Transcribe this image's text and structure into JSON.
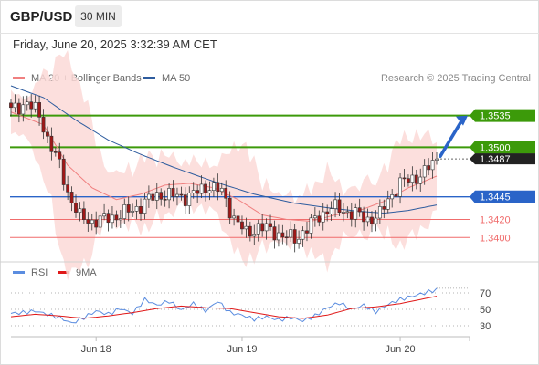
{
  "header": {
    "symbol": "GBP/USD",
    "timeframe": "30 MIN",
    "datetime": "Friday, June 20, 2025 3:32:39 AM CET"
  },
  "legend": {
    "ma20": "MA 20 + Bollinger Bands",
    "ma50": "MA 50",
    "rsi": "RSI",
    "rsi_ma": "9MA",
    "credit": "Research © 2025 Trading Central"
  },
  "colors": {
    "ma20": "#f08080",
    "bollinger_fill": "#fcd9d7",
    "ma50": "#2e5c9e",
    "resistance": "#3c9a0a",
    "pivot": "#2a64c8",
    "support": "#f06c6c",
    "candle_up": "#ffffff",
    "candle_down": "#a01818",
    "rsi": "#5b8de0",
    "rsi_ma": "#e01818",
    "arrow": "#2a64c8",
    "current_price_bg": "#222222"
  },
  "chart_data": [
    {
      "type": "candlestick",
      "ylim": [
        1.3375,
        1.3565
      ],
      "x_tick_labels": [
        "Jun 18",
        "Jun 19",
        "Jun 20"
      ],
      "current_price": "1.3487",
      "levels": [
        {
          "value": 1.3535,
          "label": "1.3535",
          "kind": "resistance"
        },
        {
          "value": 1.35,
          "label": "1.3500",
          "kind": "resistance"
        },
        {
          "value": 1.3445,
          "label": "1.3445",
          "kind": "pivot"
        },
        {
          "value": 1.342,
          "label": "1.3420",
          "kind": "support"
        },
        {
          "value": 1.34,
          "label": "1.3400",
          "kind": "support"
        }
      ],
      "projection": {
        "from": 1.349,
        "to": 1.3535
      },
      "series": [
        {
          "name": "MA 20 + Bollinger Bands",
          "anchors": [
            [
              0,
              1.3539
            ],
            [
              8,
              1.3525
            ],
            [
              14,
              1.348
            ],
            [
              20,
              1.3455
            ],
            [
              26,
              1.3442
            ],
            [
              32,
              1.3448
            ],
            [
              38,
              1.3458
            ],
            [
              44,
              1.346
            ],
            [
              50,
              1.3455
            ],
            [
              56,
              1.3442
            ],
            [
              62,
              1.3425
            ],
            [
              68,
              1.342
            ],
            [
              74,
              1.3418
            ],
            [
              80,
              1.3425
            ],
            [
              86,
              1.343
            ],
            [
              92,
              1.344
            ],
            [
              98,
              1.3455
            ],
            [
              105,
              1.3468
            ]
          ]
        },
        {
          "name": "MA 50",
          "anchors": [
            [
              0,
              1.3568
            ],
            [
              8,
              1.3555
            ],
            [
              16,
              1.353
            ],
            [
              24,
              1.3508
            ],
            [
              32,
              1.3492
            ],
            [
              40,
              1.3478
            ],
            [
              50,
              1.3462
            ],
            [
              60,
              1.3448
            ],
            [
              70,
              1.3438
            ],
            [
              78,
              1.3433
            ],
            [
              86,
              1.3429
            ],
            [
              92,
              1.3427
            ],
            [
              98,
              1.343
            ],
            [
              105,
              1.3436
            ]
          ]
        }
      ]
    },
    {
      "type": "line",
      "title": "RSI",
      "ylim": [
        20,
        80
      ],
      "y_ticks": [
        70,
        50,
        30
      ],
      "series": [
        {
          "name": "RSI",
          "anchors": [
            [
              0,
              45
            ],
            [
              3,
              46
            ],
            [
              6,
              48
            ],
            [
              9,
              44
            ],
            [
              12,
              40
            ],
            [
              15,
              33
            ],
            [
              18,
              40
            ],
            [
              21,
              48
            ],
            [
              24,
              44
            ],
            [
              27,
              51
            ],
            [
              30,
              45
            ],
            [
              33,
              62
            ],
            [
              36,
              55
            ],
            [
              39,
              60
            ],
            [
              42,
              49
            ],
            [
              45,
              57
            ],
            [
              48,
              48
            ],
            [
              51,
              60
            ],
            [
              54,
              46
            ],
            [
              57,
              43
            ],
            [
              60,
              38
            ],
            [
              63,
              41
            ],
            [
              66,
              37
            ],
            [
              69,
              40
            ],
            [
              72,
              36
            ],
            [
              75,
              42
            ],
            [
              78,
              52
            ],
            [
              81,
              58
            ],
            [
              84,
              50
            ],
            [
              87,
              55
            ],
            [
              90,
              47
            ],
            [
              93,
              56
            ],
            [
              96,
              62
            ],
            [
              99,
              66
            ],
            [
              102,
              70
            ],
            [
              105,
              74
            ]
          ]
        },
        {
          "name": "9MA",
          "anchors": [
            [
              0,
              41
            ],
            [
              6,
              44
            ],
            [
              12,
              42
            ],
            [
              18,
              39
            ],
            [
              24,
              42
            ],
            [
              30,
              46
            ],
            [
              36,
              51
            ],
            [
              42,
              54
            ],
            [
              48,
              52
            ],
            [
              54,
              51
            ],
            [
              60,
              46
            ],
            [
              66,
              41
            ],
            [
              72,
              39
            ],
            [
              78,
              43
            ],
            [
              84,
              51
            ],
            [
              90,
              53
            ],
            [
              96,
              57
            ],
            [
              102,
              63
            ],
            [
              105,
              66
            ]
          ]
        }
      ]
    }
  ]
}
